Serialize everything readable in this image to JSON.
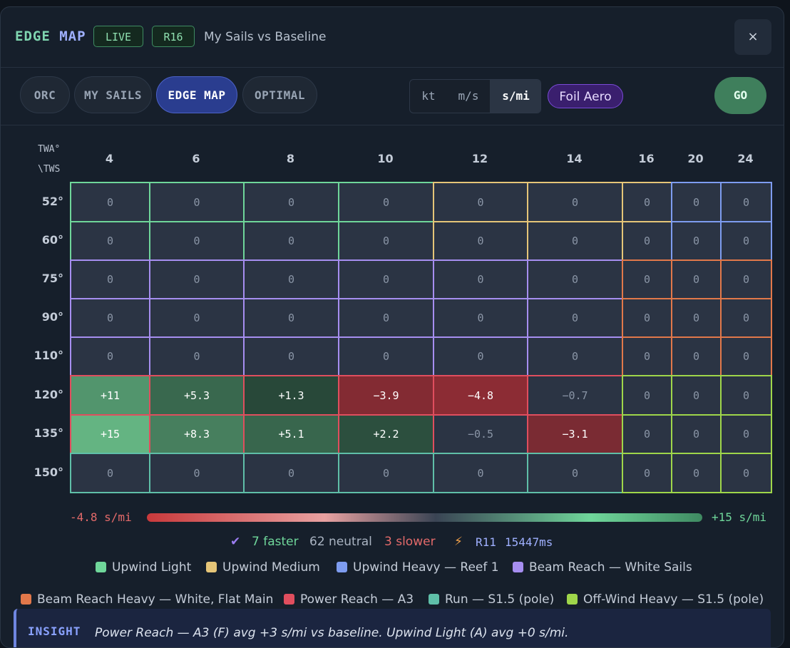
{
  "header": {
    "brand_part1": "EDGE",
    "brand_part2": "MAP",
    "live_tag": "LIVE",
    "round_tag": "R16",
    "title": "My Sails vs Baseline",
    "close_label": "×"
  },
  "toolbar": {
    "tabs": [
      "ORC",
      "MY SAILS",
      "EDGE MAP",
      "OPTIMAL"
    ],
    "active_tab": "EDGE MAP",
    "units": [
      "kt",
      "m/s",
      "s/mi"
    ],
    "active_unit": "s/mi",
    "foil_label": "Foil Aero",
    "go_label": "GO"
  },
  "grid": {
    "corner_top": "TWA°",
    "corner_bottom": "\\TWS",
    "tws": [
      "4",
      "6",
      "8",
      "10",
      "12",
      "14",
      "16",
      "20",
      "24"
    ],
    "twa": [
      "52°",
      "60°",
      "75°",
      "90°",
      "110°",
      "120°",
      "135°",
      "150°"
    ],
    "values": [
      [
        "0",
        "0",
        "0",
        "0",
        "0",
        "0",
        "0",
        "0",
        "0"
      ],
      [
        "0",
        "0",
        "0",
        "0",
        "0",
        "0",
        "0",
        "0",
        "0"
      ],
      [
        "0",
        "0",
        "0",
        "0",
        "0",
        "0",
        "0",
        "0",
        "0"
      ],
      [
        "0",
        "0",
        "0",
        "0",
        "0",
        "0",
        "0",
        "0",
        "0"
      ],
      [
        "0",
        "0",
        "0",
        "0",
        "0",
        "0",
        "0",
        "0",
        "0"
      ],
      [
        "+11",
        "+5.3",
        "+1.3",
        "−3.9",
        "−4.8",
        "−0.7",
        "0",
        "0",
        "0"
      ],
      [
        "+15",
        "+8.3",
        "+5.1",
        "+2.2",
        "−0.5",
        "−3.1",
        "0",
        "0",
        "0"
      ],
      [
        "0",
        "0",
        "0",
        "0",
        "0",
        "0",
        "0",
        "0",
        "0"
      ]
    ],
    "numeric": [
      [
        0,
        0,
        0,
        0,
        0,
        0,
        0,
        0,
        0
      ],
      [
        0,
        0,
        0,
        0,
        0,
        0,
        0,
        0,
        0
      ],
      [
        0,
        0,
        0,
        0,
        0,
        0,
        0,
        0,
        0
      ],
      [
        0,
        0,
        0,
        0,
        0,
        0,
        0,
        0,
        0
      ],
      [
        0,
        0,
        0,
        0,
        0,
        0,
        0,
        0,
        0
      ],
      [
        11,
        5.3,
        1.3,
        -3.9,
        -4.8,
        -0.7,
        0,
        0,
        0
      ],
      [
        15,
        8.3,
        5.1,
        2.2,
        -0.5,
        -3.1,
        0,
        0,
        0
      ],
      [
        0,
        0,
        0,
        0,
        0,
        0,
        0,
        0,
        0
      ]
    ],
    "sail_zones": [
      [
        "UL",
        "UL",
        "UL",
        "UL",
        "UM",
        "UM",
        "UM",
        "UH",
        "UH"
      ],
      [
        "UL",
        "UL",
        "UL",
        "UL",
        "UM",
        "UM",
        "UM",
        "UH",
        "UH"
      ],
      [
        "BR",
        "BR",
        "BR",
        "BR",
        "BR",
        "BR",
        "BH",
        "BH",
        "BH"
      ],
      [
        "BR",
        "BR",
        "BR",
        "BR",
        "BR",
        "BR",
        "BH",
        "BH",
        "BH"
      ],
      [
        "BR",
        "BR",
        "BR",
        "BR",
        "BR",
        "BR",
        "BH",
        "BH",
        "BH"
      ],
      [
        "PR",
        "PR",
        "PR",
        "PR",
        "PR",
        "PR",
        "OH",
        "OH",
        "OH"
      ],
      [
        "PR",
        "PR",
        "PR",
        "PR",
        "PR",
        "PR",
        "OH",
        "OH",
        "OH"
      ],
      [
        "RN",
        "RN",
        "RN",
        "RN",
        "RN",
        "RN",
        "OH",
        "OH",
        "OH"
      ]
    ]
  },
  "scale": {
    "min_label": "-4.8 s/mi",
    "max_label": "+15 s/mi"
  },
  "stats": {
    "faster": "7 faster",
    "neutral": "62 neutral",
    "slower": "3 slower",
    "round": "R11",
    "timing": "15447ms"
  },
  "legend": {
    "items": [
      {
        "code": "UL",
        "label": "Upwind Light",
        "color": "#6fd69a"
      },
      {
        "code": "UM",
        "label": "Upwind Medium",
        "color": "#e5c578"
      },
      {
        "code": "UH",
        "label": "Upwind Heavy — Reef 1",
        "color": "#7e9cf0"
      },
      {
        "code": "BR",
        "label": "Beam Reach — White Sails",
        "color": "#a68ef0"
      },
      {
        "code": "BH",
        "label": "Beam Reach Heavy — White, Flat Main",
        "color": "#e2784a"
      },
      {
        "code": "PR",
        "label": "Power Reach — A3",
        "color": "#e04e5e"
      },
      {
        "code": "RN",
        "label": "Run — S1.5 (pole)",
        "color": "#5fbfa8"
      },
      {
        "code": "OH",
        "label": "Off-Wind Heavy — S1.5 (pole)",
        "color": "#9fd64a"
      }
    ]
  },
  "insight": {
    "label": "INSIGHT",
    "text": "Power Reach — A3 (F) avg +3 s/mi vs baseline. Upwind Light (A) avg +0 s/mi."
  },
  "colors": {
    "positive": "#6fd69a",
    "negative": "#e46a6a",
    "accent": "#2a3d8f"
  }
}
